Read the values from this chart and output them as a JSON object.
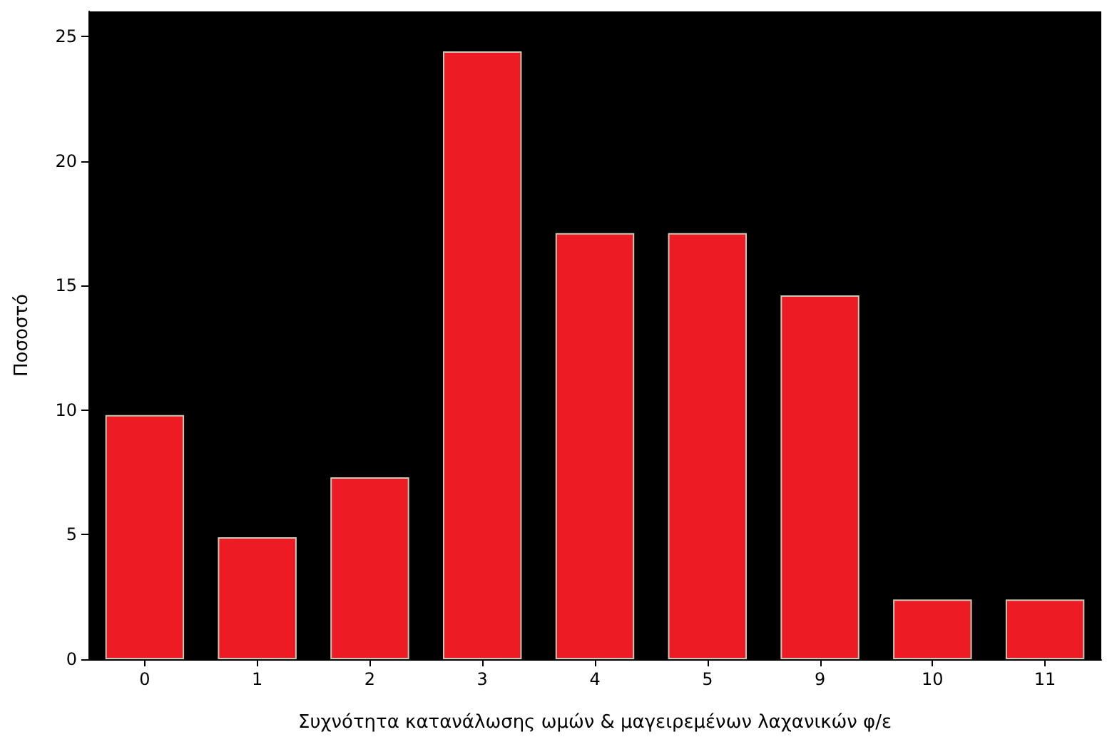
{
  "chart_data": {
    "type": "bar",
    "xlabel": "Συχνότητα κατανάλωσης ωμών & μαγειρεμένων λαχανικών φ/ε",
    "ylabel": "Ποσοστό",
    "categories": [
      "0",
      "1",
      "2",
      "3",
      "4",
      "5",
      "9",
      "10",
      "11"
    ],
    "values": [
      9.8,
      4.9,
      7.3,
      24.4,
      17.1,
      17.1,
      14.6,
      2.4,
      2.4
    ],
    "color": "#ed1c24",
    "ylim": [
      0,
      26
    ],
    "yticks": [
      0,
      5,
      10,
      15,
      20,
      25
    ],
    "grid": false
  }
}
